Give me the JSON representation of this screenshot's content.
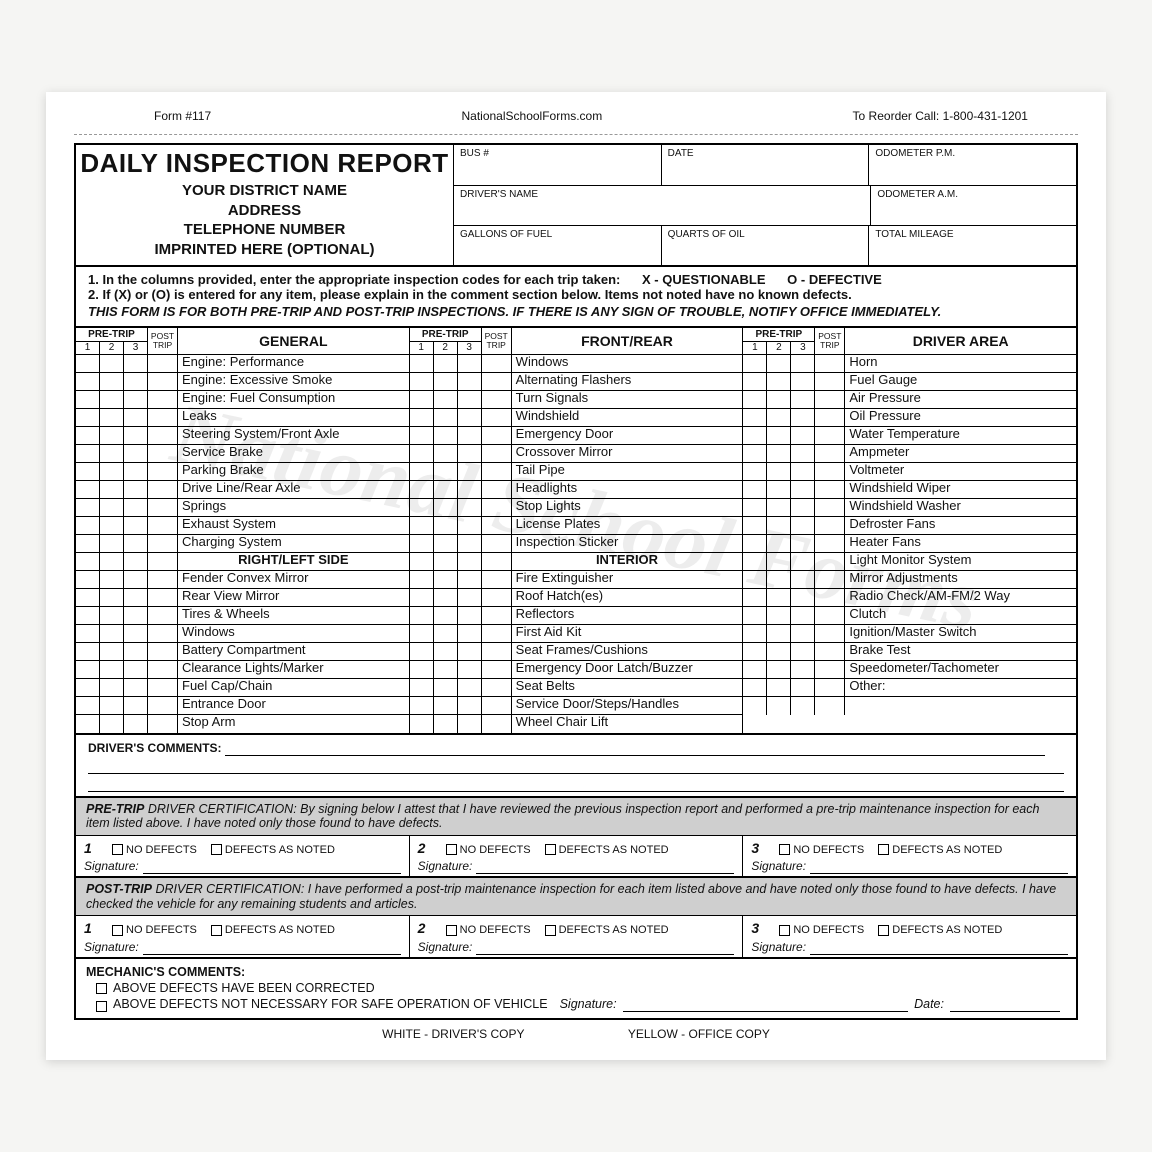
{
  "meta": {
    "form_no": "Form #117",
    "site": "NationalSchoolForms.com",
    "reorder": "To Reorder Call: 1-800-431-1201"
  },
  "header": {
    "title": "DAILY INSPECTION REPORT",
    "sub1": "YOUR DISTRICT NAME",
    "sub2": "ADDRESS",
    "sub3": "TELEPHONE NUMBER",
    "sub4": "IMPRINTED HERE (OPTIONAL)",
    "fields": {
      "bus": "BUS #",
      "date": "DATE",
      "odo_pm": "ODOMETER P.M.",
      "driver": "DRIVER'S NAME",
      "odo_am": "ODOMETER A.M.",
      "fuel": "GALLONS OF FUEL",
      "oil": "QUARTS OF OIL",
      "mileage": "TOTAL MILEAGE"
    }
  },
  "instructions": {
    "l1a": "1.  In the columns provided, enter the appropriate inspection codes for each trip taken:",
    "l1b": "X - QUESTIONABLE",
    "l1c": "O - DEFECTIVE",
    "l2": "2.  If (X)  or  (O) is entered for any item, please explain in the comment section below.  Items not noted have no known defects.",
    "l3": "THIS FORM IS FOR BOTH PRE-TRIP AND POST-TRIP INSPECTIONS.  IF THERE IS ANY SIGN OF TROUBLE, NOTIFY OFFICE IMMEDIATELY."
  },
  "trip_labels": {
    "pre": "PRE-TRIP",
    "post1": "POST",
    "post2": "TRIP",
    "n1": "1",
    "n2": "2",
    "n3": "3"
  },
  "cats": {
    "general": "GENERAL",
    "rightleft": "RIGHT/LEFT SIDE",
    "frontrear": "FRONT/REAR",
    "interior": "INTERIOR",
    "driver": "DRIVER AREA"
  },
  "col1": [
    "Engine:  Performance",
    "Engine:  Excessive Smoke",
    "Engine:  Fuel Consumption",
    "Leaks",
    "Steering System/Front Axle",
    "Service Brake",
    "Parking Brake",
    "Drive Line/Rear Axle",
    "Springs",
    "Exhaust System",
    "Charging System"
  ],
  "col1b": [
    "Fender Convex Mirror",
    "Rear View Mirror",
    "Tires & Wheels",
    "Windows",
    "Battery Compartment",
    "Clearance Lights/Marker",
    "Fuel Cap/Chain",
    "Entrance Door",
    "Stop Arm"
  ],
  "col2": [
    "Windows",
    "Alternating Flashers",
    "Turn Signals",
    "Windshield",
    "Emergency Door",
    "Crossover Mirror",
    "Tail Pipe",
    "Headlights",
    "Stop Lights",
    "License Plates",
    "Inspection Sticker"
  ],
  "col2b": [
    "Fire Extinguisher",
    "Roof Hatch(es)",
    "Reflectors",
    "First Aid Kit",
    "Seat Frames/Cushions",
    "Emergency Door Latch/Buzzer",
    "Seat Belts",
    "Service Door/Steps/Handles",
    "Wheel Chair Lift"
  ],
  "col3": [
    "Horn",
    "Fuel Gauge",
    "Air Pressure",
    "Oil Pressure",
    "Water Temperature",
    "Ampmeter",
    "Voltmeter",
    "Windshield Wiper",
    "Windshield Washer",
    "Defroster Fans",
    "Heater Fans",
    "Light Monitor System",
    "Mirror Adjustments",
    "Radio Check/AM-FM/2 Way",
    "Clutch",
    "Ignition/Master Switch",
    "Brake Test",
    "Speedometer/Tachometer",
    "Other:",
    ""
  ],
  "comments_label": "DRIVER'S COMMENTS:",
  "cert": {
    "pre_title": "PRE-TRIP",
    "pre_body": " DRIVER CERTIFICATION:  By signing below I attest that I have reviewed the previous inspection report and performed a pre-trip maintenance inspection for each item listed above.  I have noted only those found to have defects.",
    "post_title": "POST-TRIP",
    "post_body": " DRIVER CERTIFICATION:  I have performed a post-trip maintenance inspection for each item listed above and have noted only those found to have defects. I have checked the vehicle for any remaining students and articles.",
    "no_defects": "NO DEFECTS",
    "defects_noted": "DEFECTS AS NOTED",
    "signature": "Signature:"
  },
  "mechanic": {
    "title": "MECHANIC'S COMMENTS:",
    "l1": "ABOVE DEFECTS HAVE BEEN CORRECTED",
    "l2": "ABOVE DEFECTS NOT NECESSARY FOR SAFE OPERATION OF VEHICLE",
    "sig": "Signature:",
    "date": "Date:"
  },
  "footer": {
    "white": "WHITE - DRIVER'S COPY",
    "yellow": "YELLOW - OFFICE COPY"
  },
  "watermark": "National School Forms"
}
